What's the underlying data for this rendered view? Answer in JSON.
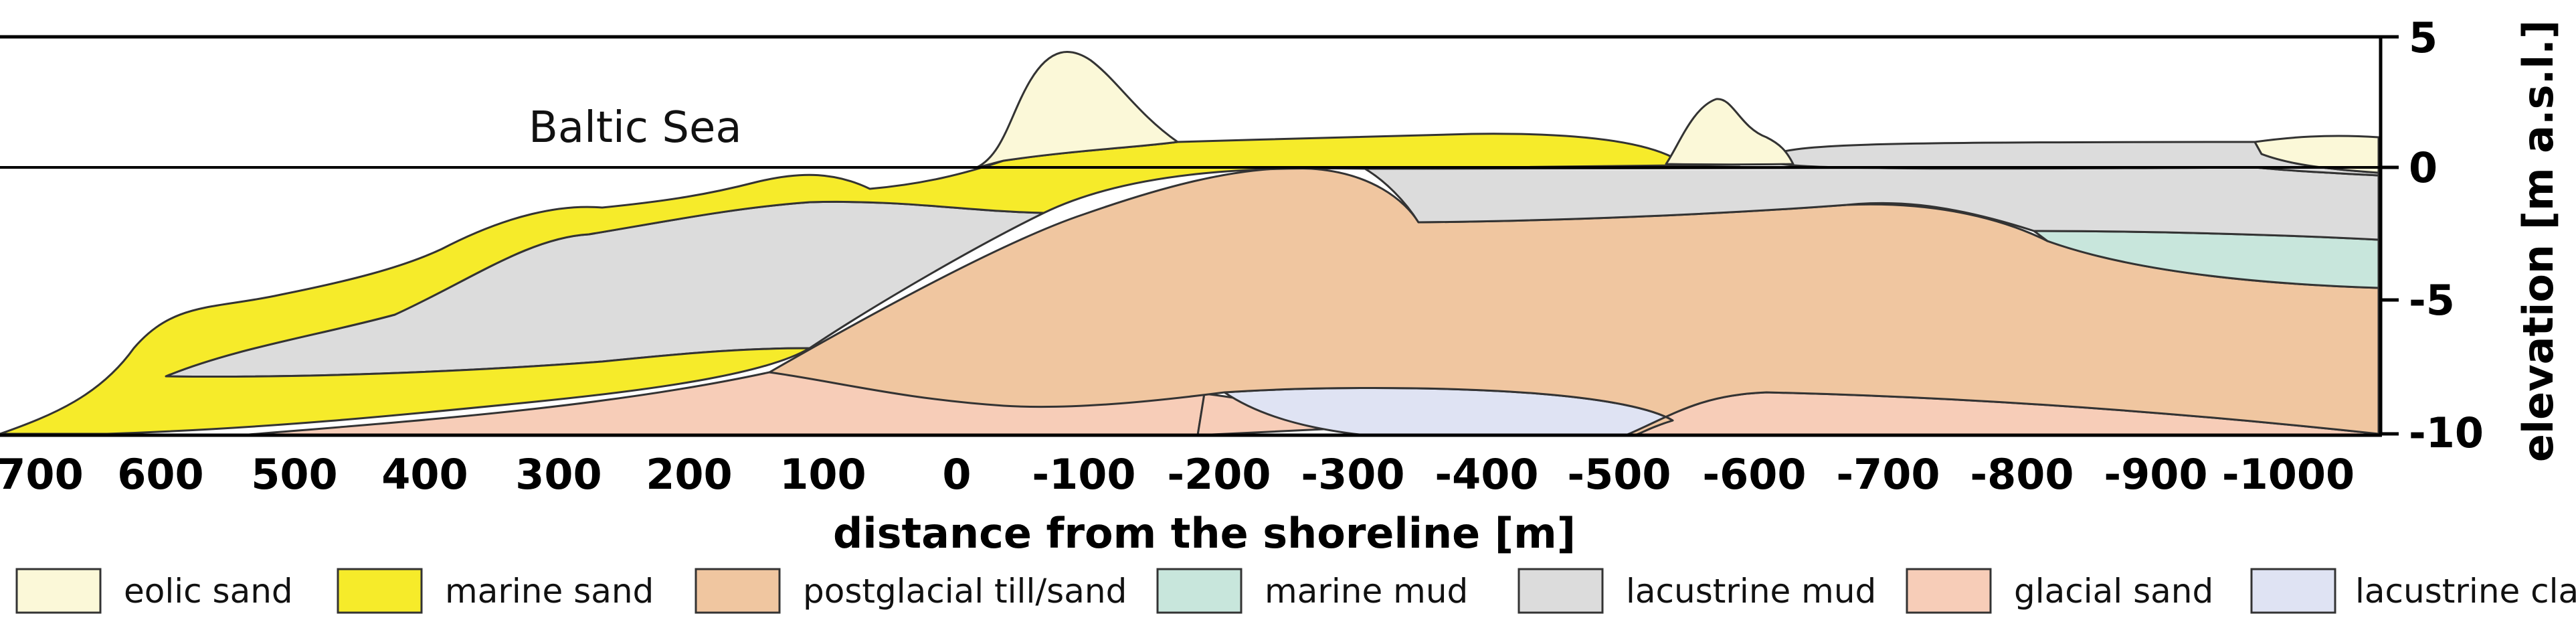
{
  "figure": {
    "annotation": "Baltic Sea",
    "x_axis": {
      "title": "distance from the shoreline  [m]",
      "ticks": [
        "700",
        "600",
        "500",
        "400",
        "300",
        "200",
        "100",
        "0",
        "-100",
        "-200",
        "-300",
        "-400",
        "-500",
        "-600",
        "-700",
        "-800",
        "-900",
        "-1000"
      ]
    },
    "y_axis": {
      "title": "elevation [m a.s.l.]",
      "ticks": [
        "5",
        "0",
        "-5",
        "-10"
      ]
    },
    "legend": [
      {
        "key": "eolic",
        "label": "eolic sand",
        "color": "#fbf8d8"
      },
      {
        "key": "marine_sand",
        "label": "marine sand",
        "color": "#f6eb2a"
      },
      {
        "key": "postglacial",
        "label": "postglacial till/sand",
        "color": "#f0c6a0"
      },
      {
        "key": "marine_mud",
        "label": "marine mud",
        "color": "#c8e6dc"
      },
      {
        "key": "lacustrine_mud",
        "label": "lacustrine mud",
        "color": "#dcdcdc"
      },
      {
        "key": "glacial_sand",
        "label": "glacial sand",
        "color": "#f7cdb8"
      },
      {
        "key": "lacustrine_clay",
        "label": "lacustrine clay",
        "color": "#dfe3f3"
      }
    ]
  }
}
